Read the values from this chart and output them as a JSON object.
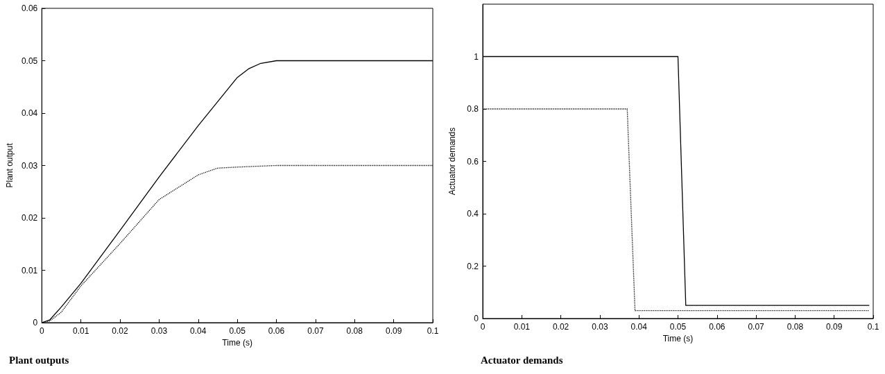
{
  "chart_data": [
    {
      "type": "line",
      "title": "Plant outputs",
      "xlabel": "Time (s)",
      "ylabel": "Plant output",
      "xlim": [
        0,
        0.1
      ],
      "xticks": [
        0,
        0.01,
        0.02,
        0.03,
        0.04,
        0.05,
        0.06,
        0.07,
        0.08,
        0.09,
        0.1
      ],
      "ylim": [
        0,
        0.06
      ],
      "yticks": [
        0,
        0.01,
        0.02,
        0.03,
        0.04,
        0.05,
        0.06
      ],
      "grid": false,
      "marker": "none",
      "series": [
        {
          "color": "#000000",
          "line_style": "solid",
          "x": [
            0,
            0.002,
            0.005,
            0.01,
            0.02,
            0.03,
            0.04,
            0.05,
            0.053,
            0.056,
            0.06,
            0.1
          ],
          "values": [
            0,
            0.0005,
            0.003,
            0.0075,
            0.0176,
            0.0278,
            0.0376,
            0.0468,
            0.0485,
            0.0495,
            0.05,
            0.05
          ]
        },
        {
          "color": "#000000",
          "line_style": "dotted",
          "x": [
            0,
            0.002,
            0.005,
            0.01,
            0.02,
            0.03,
            0.04,
            0.043,
            0.045,
            0.05,
            0.06,
            0.1
          ],
          "values": [
            0,
            0.0003,
            0.002,
            0.007,
            0.0151,
            0.0235,
            0.0282,
            0.029,
            0.0295,
            0.0297,
            0.03,
            0.03
          ]
        }
      ]
    },
    {
      "type": "line",
      "title": "Actuator demands",
      "xlabel": "Time (s)",
      "ylabel": "Actuator demands",
      "xlim": [
        0,
        0.1
      ],
      "xticks": [
        0,
        0.01,
        0.02,
        0.03,
        0.04,
        0.05,
        0.06,
        0.07,
        0.08,
        0.09,
        0.1
      ],
      "ylim": [
        0,
        1.2
      ],
      "yticks": [
        0,
        0.2,
        0.4,
        0.6,
        0.8,
        1
      ],
      "grid": false,
      "marker": "none",
      "series": [
        {
          "color": "#000000",
          "line_style": "solid",
          "x": [
            0,
            0.05,
            0.052,
            0.099
          ],
          "values": [
            1,
            1,
            0.05,
            0.05
          ]
        },
        {
          "color": "#000000",
          "line_style": "dotted",
          "x": [
            0,
            0.037,
            0.039,
            0.099
          ],
          "values": [
            0.8,
            0.8,
            0.03,
            0.03
          ]
        }
      ]
    }
  ]
}
